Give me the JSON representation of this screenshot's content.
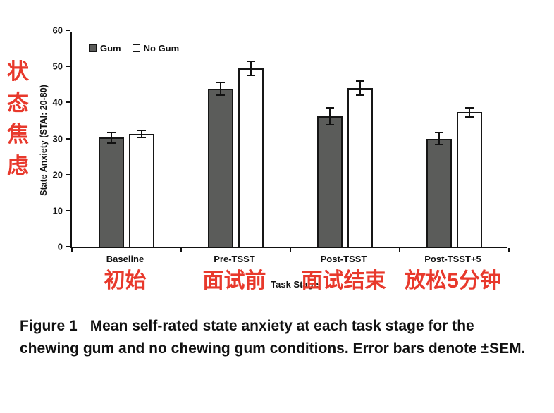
{
  "annotations": {
    "y_axis_vertical": "状态焦虑",
    "x_labels": [
      "初始",
      "面试前",
      "面试结束",
      "放松5分钟"
    ],
    "color": "#e8392c"
  },
  "chart_data": {
    "type": "bar",
    "title": "",
    "categories": [
      "Baseline",
      "Pre-TSST",
      "Post-TSST",
      "Post-TSST+5"
    ],
    "series": [
      {
        "name": "Gum",
        "values": [
          30.2,
          43.8,
          36.2,
          30.0
        ],
        "errors": [
          1.5,
          1.8,
          2.4,
          1.7
        ],
        "fill": "#5b5c5a",
        "border": "#161616"
      },
      {
        "name": "No Gum",
        "values": [
          31.3,
          49.4,
          44.0,
          37.3
        ],
        "errors": [
          1.0,
          2.0,
          1.9,
          1.3
        ],
        "fill": "#ffffff",
        "border": "#161616"
      }
    ],
    "xlabel": "Task Stage",
    "ylabel": "State Anxiety (STAI: 20-80)",
    "ylim": [
      0,
      60
    ],
    "yticks": [
      0,
      10,
      20,
      30,
      40,
      50,
      60
    ],
    "legend_position": "top-left",
    "grid": false
  },
  "caption": {
    "label": "Figure 1",
    "text": "Mean self-rated state anxiety at each task stage for the chewing gum and no chewing gum conditions. Error bars denote ±SEM."
  }
}
